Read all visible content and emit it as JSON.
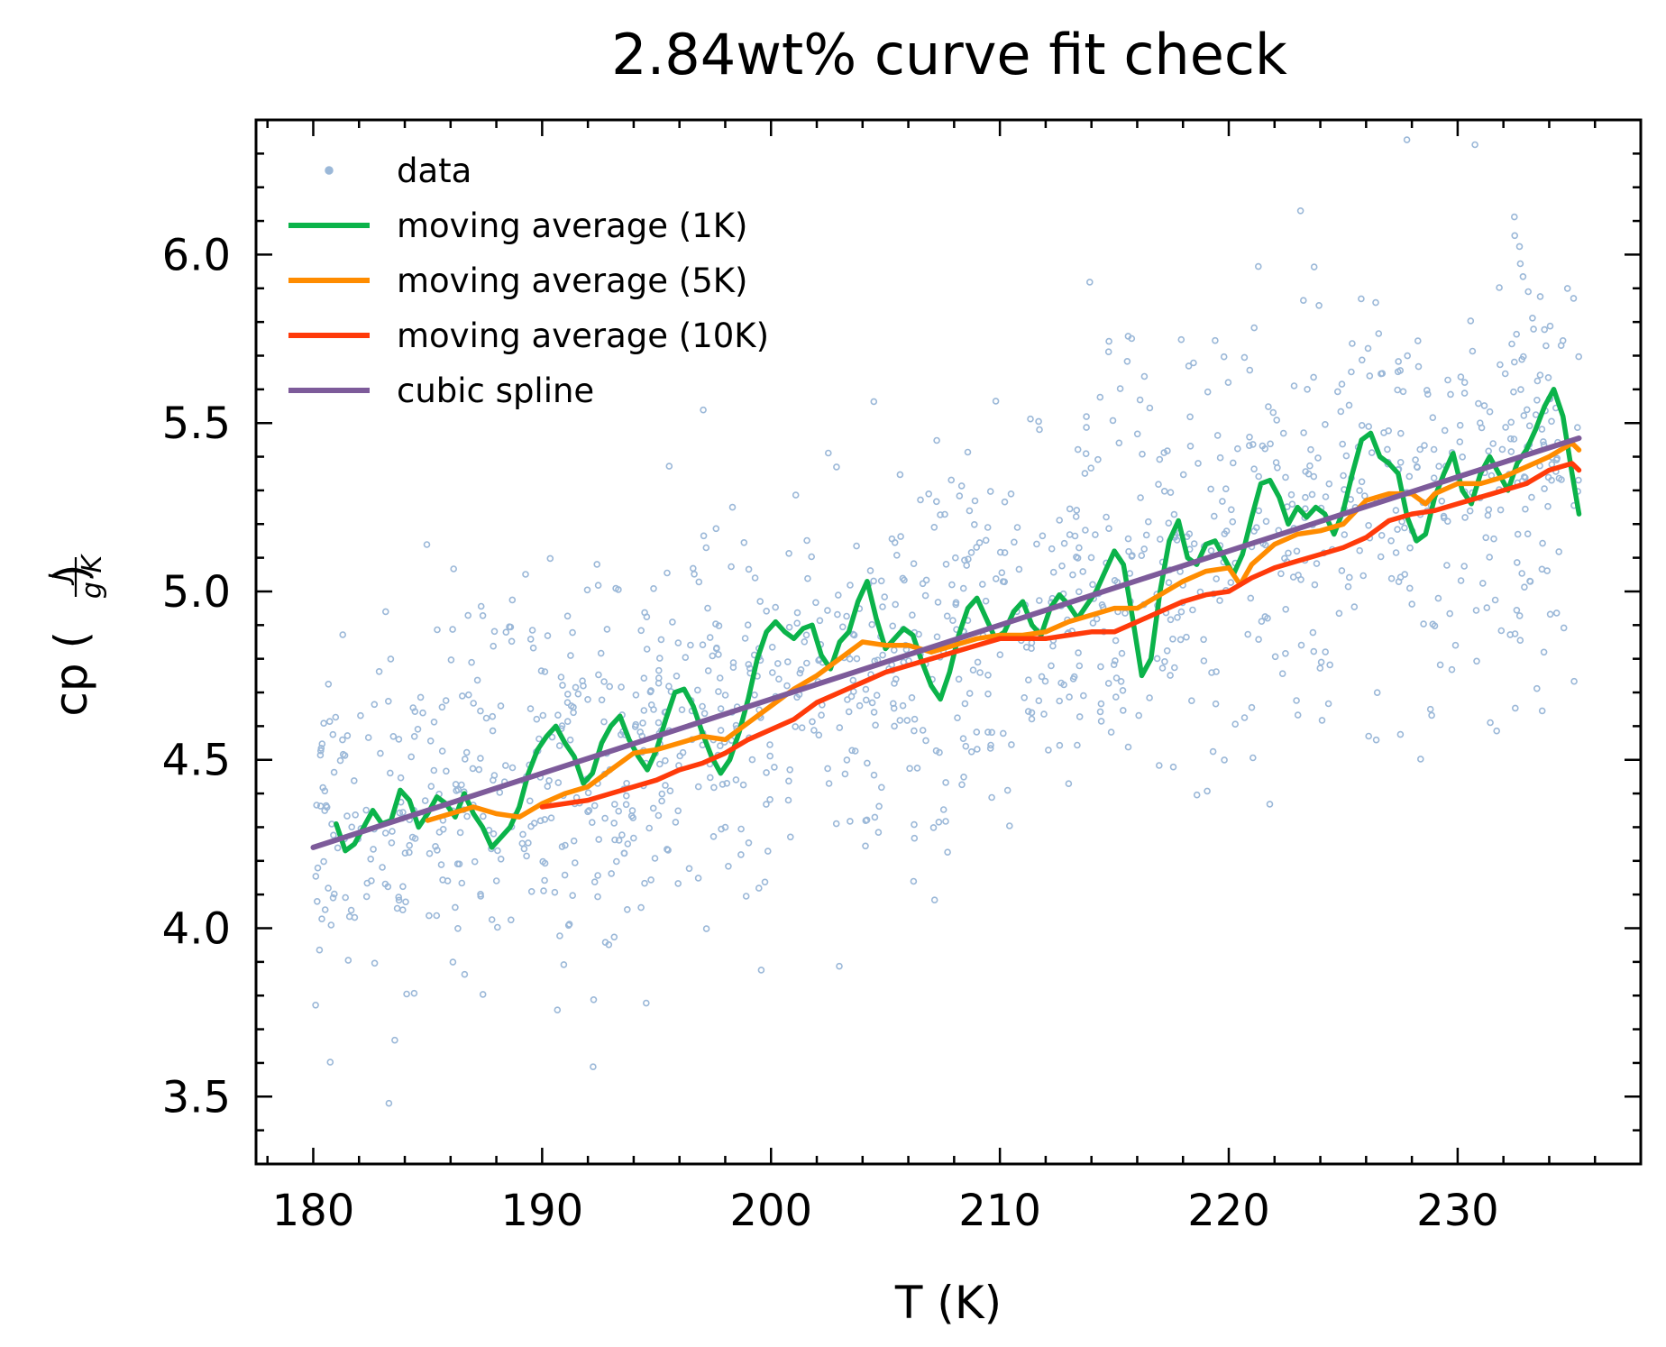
{
  "chart_data": {
    "type": "line",
    "title": "2.84wt% curve fit check",
    "xlabel": "T (K)",
    "ylabel_prefix": "cp (",
    "ylabel_numerator": "J",
    "ylabel_denominator": "g·K",
    "ylabel_suffix": ")",
    "xlim": [
      177.5,
      238
    ],
    "ylim": [
      3.3,
      6.4
    ],
    "x_ticks": [
      180,
      190,
      200,
      210,
      220,
      230
    ],
    "x_tick_labels": [
      "180",
      "190",
      "200",
      "210",
      "220",
      "230"
    ],
    "y_ticks": [
      3.5,
      4.0,
      4.5,
      5.0,
      5.5,
      6.0
    ],
    "y_tick_labels": [
      "3.5",
      "4.0",
      "4.5",
      "5.0",
      "5.5",
      "6.0"
    ],
    "grid": false,
    "legend_position": "top-left",
    "series": [
      {
        "name": "data",
        "kind": "scatter",
        "color": "#9bb8d8",
        "x_range": [
          180.1,
          235.3
        ],
        "trend": [
          [
            180,
            4.24
          ],
          [
            235.3,
            5.46
          ]
        ],
        "noise_sd": 0.3,
        "count": 1300
      },
      {
        "name": "moving average (1K)",
        "kind": "line",
        "color": "#0bb34a",
        "points": [
          [
            181.0,
            4.31
          ],
          [
            181.4,
            4.23
          ],
          [
            181.8,
            4.25
          ],
          [
            182.2,
            4.3
          ],
          [
            182.6,
            4.35
          ],
          [
            183.0,
            4.31
          ],
          [
            183.4,
            4.32
          ],
          [
            183.8,
            4.41
          ],
          [
            184.2,
            4.38
          ],
          [
            184.6,
            4.3
          ],
          [
            185.0,
            4.34
          ],
          [
            185.4,
            4.39
          ],
          [
            185.8,
            4.37
          ],
          [
            186.2,
            4.33
          ],
          [
            186.6,
            4.4
          ],
          [
            187.0,
            4.34
          ],
          [
            187.4,
            4.3
          ],
          [
            187.8,
            4.24
          ],
          [
            188.2,
            4.27
          ],
          [
            188.6,
            4.3
          ],
          [
            189.0,
            4.36
          ],
          [
            189.4,
            4.46
          ],
          [
            189.8,
            4.53
          ],
          [
            190.2,
            4.57
          ],
          [
            190.6,
            4.6
          ],
          [
            191.0,
            4.55
          ],
          [
            191.4,
            4.51
          ],
          [
            191.8,
            4.43
          ],
          [
            192.2,
            4.46
          ],
          [
            192.6,
            4.55
          ],
          [
            193.0,
            4.6
          ],
          [
            193.4,
            4.63
          ],
          [
            193.8,
            4.56
          ],
          [
            194.2,
            4.51
          ],
          [
            194.6,
            4.47
          ],
          [
            195.0,
            4.53
          ],
          [
            195.4,
            4.62
          ],
          [
            195.8,
            4.7
          ],
          [
            196.2,
            4.71
          ],
          [
            196.6,
            4.66
          ],
          [
            197.0,
            4.58
          ],
          [
            197.4,
            4.51
          ],
          [
            197.8,
            4.46
          ],
          [
            198.2,
            4.5
          ],
          [
            198.6,
            4.58
          ],
          [
            199.0,
            4.68
          ],
          [
            199.4,
            4.8
          ],
          [
            199.8,
            4.88
          ],
          [
            200.2,
            4.91
          ],
          [
            200.6,
            4.88
          ],
          [
            201.0,
            4.86
          ],
          [
            201.4,
            4.89
          ],
          [
            201.8,
            4.9
          ],
          [
            202.2,
            4.81
          ],
          [
            202.6,
            4.77
          ],
          [
            203.0,
            4.85
          ],
          [
            203.4,
            4.88
          ],
          [
            203.8,
            4.97
          ],
          [
            204.2,
            5.03
          ],
          [
            204.6,
            4.92
          ],
          [
            205.0,
            4.83
          ],
          [
            205.4,
            4.86
          ],
          [
            205.8,
            4.89
          ],
          [
            206.2,
            4.87
          ],
          [
            206.6,
            4.79
          ],
          [
            207.0,
            4.72
          ],
          [
            207.4,
            4.68
          ],
          [
            207.8,
            4.76
          ],
          [
            208.2,
            4.87
          ],
          [
            208.6,
            4.95
          ],
          [
            209.0,
            4.98
          ],
          [
            209.4,
            4.92
          ],
          [
            209.8,
            4.86
          ],
          [
            210.2,
            4.88
          ],
          [
            210.6,
            4.94
          ],
          [
            211.0,
            4.97
          ],
          [
            211.4,
            4.9
          ],
          [
            211.8,
            4.87
          ],
          [
            212.2,
            4.95
          ],
          [
            212.6,
            4.99
          ],
          [
            213.0,
            4.96
          ],
          [
            213.4,
            4.92
          ],
          [
            213.8,
            4.96
          ],
          [
            214.2,
            5.0
          ],
          [
            214.6,
            5.06
          ],
          [
            215.0,
            5.12
          ],
          [
            215.4,
            5.08
          ],
          [
            215.8,
            4.92
          ],
          [
            216.2,
            4.75
          ],
          [
            216.6,
            4.8
          ],
          [
            217.0,
            5.0
          ],
          [
            217.4,
            5.15
          ],
          [
            217.8,
            5.21
          ],
          [
            218.2,
            5.1
          ],
          [
            218.6,
            5.08
          ],
          [
            219.0,
            5.14
          ],
          [
            219.4,
            5.15
          ],
          [
            219.8,
            5.1
          ],
          [
            220.2,
            5.05
          ],
          [
            220.6,
            5.11
          ],
          [
            221.0,
            5.22
          ],
          [
            221.4,
            5.32
          ],
          [
            221.8,
            5.33
          ],
          [
            222.2,
            5.28
          ],
          [
            222.6,
            5.2
          ],
          [
            223.0,
            5.25
          ],
          [
            223.4,
            5.22
          ],
          [
            223.8,
            5.25
          ],
          [
            224.2,
            5.23
          ],
          [
            224.6,
            5.17
          ],
          [
            225.0,
            5.24
          ],
          [
            225.4,
            5.35
          ],
          [
            225.8,
            5.45
          ],
          [
            226.2,
            5.47
          ],
          [
            226.6,
            5.4
          ],
          [
            227.0,
            5.38
          ],
          [
            227.4,
            5.35
          ],
          [
            227.8,
            5.22
          ],
          [
            228.2,
            5.15
          ],
          [
            228.6,
            5.17
          ],
          [
            229.0,
            5.28
          ],
          [
            229.4,
            5.35
          ],
          [
            229.8,
            5.41
          ],
          [
            230.2,
            5.3
          ],
          [
            230.6,
            5.26
          ],
          [
            231.0,
            5.35
          ],
          [
            231.4,
            5.4
          ],
          [
            231.8,
            5.35
          ],
          [
            232.2,
            5.3
          ],
          [
            232.6,
            5.38
          ],
          [
            233.0,
            5.42
          ],
          [
            233.4,
            5.48
          ],
          [
            233.8,
            5.55
          ],
          [
            234.2,
            5.6
          ],
          [
            234.6,
            5.52
          ],
          [
            235.0,
            5.35
          ],
          [
            235.3,
            5.23
          ]
        ]
      },
      {
        "name": "moving average (5K)",
        "kind": "line",
        "color": "#ff8c00",
        "points": [
          [
            185.0,
            4.32
          ],
          [
            186.0,
            4.34
          ],
          [
            187.0,
            4.36
          ],
          [
            188.0,
            4.34
          ],
          [
            189.0,
            4.33
          ],
          [
            190.0,
            4.37
          ],
          [
            191.0,
            4.4
          ],
          [
            192.0,
            4.42
          ],
          [
            193.0,
            4.47
          ],
          [
            194.0,
            4.52
          ],
          [
            195.0,
            4.53
          ],
          [
            196.0,
            4.55
          ],
          [
            197.0,
            4.57
          ],
          [
            198.0,
            4.56
          ],
          [
            199.0,
            4.61
          ],
          [
            200.0,
            4.66
          ],
          [
            201.0,
            4.71
          ],
          [
            202.0,
            4.75
          ],
          [
            203.0,
            4.8
          ],
          [
            204.0,
            4.85
          ],
          [
            205.0,
            4.84
          ],
          [
            206.0,
            4.84
          ],
          [
            207.0,
            4.82
          ],
          [
            208.0,
            4.84
          ],
          [
            209.0,
            4.86
          ],
          [
            210.0,
            4.87
          ],
          [
            211.0,
            4.87
          ],
          [
            212.0,
            4.88
          ],
          [
            213.0,
            4.91
          ],
          [
            214.0,
            4.93
          ],
          [
            215.0,
            4.95
          ],
          [
            216.0,
            4.95
          ],
          [
            217.0,
            4.99
          ],
          [
            218.0,
            5.03
          ],
          [
            219.0,
            5.06
          ],
          [
            220.0,
            5.07
          ],
          [
            220.5,
            5.02
          ],
          [
            221.0,
            5.08
          ],
          [
            222.0,
            5.14
          ],
          [
            223.0,
            5.17
          ],
          [
            224.0,
            5.18
          ],
          [
            225.0,
            5.2
          ],
          [
            226.0,
            5.27
          ],
          [
            227.0,
            5.29
          ],
          [
            228.0,
            5.29
          ],
          [
            228.6,
            5.26
          ],
          [
            229.0,
            5.29
          ],
          [
            230.0,
            5.32
          ],
          [
            231.0,
            5.32
          ],
          [
            232.0,
            5.34
          ],
          [
            233.0,
            5.37
          ],
          [
            234.0,
            5.4
          ],
          [
            235.0,
            5.44
          ],
          [
            235.3,
            5.42
          ]
        ]
      },
      {
        "name": "moving average (10K)",
        "kind": "line",
        "color": "#ff3a0a",
        "points": [
          [
            190.0,
            4.36
          ],
          [
            191.0,
            4.37
          ],
          [
            192.0,
            4.38
          ],
          [
            193.0,
            4.4
          ],
          [
            194.0,
            4.42
          ],
          [
            195.0,
            4.44
          ],
          [
            196.0,
            4.47
          ],
          [
            197.0,
            4.49
          ],
          [
            198.0,
            4.52
          ],
          [
            199.0,
            4.56
          ],
          [
            200.0,
            4.59
          ],
          [
            201.0,
            4.62
          ],
          [
            202.0,
            4.67
          ],
          [
            203.0,
            4.7
          ],
          [
            204.0,
            4.73
          ],
          [
            205.0,
            4.76
          ],
          [
            206.0,
            4.78
          ],
          [
            207.0,
            4.8
          ],
          [
            208.0,
            4.82
          ],
          [
            209.0,
            4.84
          ],
          [
            210.0,
            4.86
          ],
          [
            211.0,
            4.86
          ],
          [
            212.0,
            4.86
          ],
          [
            213.0,
            4.87
          ],
          [
            214.0,
            4.88
          ],
          [
            215.0,
            4.88
          ],
          [
            216.0,
            4.91
          ],
          [
            217.0,
            4.94
          ],
          [
            218.0,
            4.97
          ],
          [
            219.0,
            4.99
          ],
          [
            220.0,
            5.0
          ],
          [
            221.0,
            5.04
          ],
          [
            222.0,
            5.07
          ],
          [
            223.0,
            5.09
          ],
          [
            224.0,
            5.11
          ],
          [
            225.0,
            5.13
          ],
          [
            226.0,
            5.16
          ],
          [
            227.0,
            5.21
          ],
          [
            228.0,
            5.23
          ],
          [
            229.0,
            5.24
          ],
          [
            230.0,
            5.26
          ],
          [
            231.0,
            5.28
          ],
          [
            232.0,
            5.3
          ],
          [
            233.0,
            5.32
          ],
          [
            234.0,
            5.36
          ],
          [
            235.0,
            5.38
          ],
          [
            235.3,
            5.36
          ]
        ]
      },
      {
        "name": "cubic spline",
        "kind": "line",
        "color": "#7d5b9a",
        "points": [
          [
            180.0,
            4.24
          ],
          [
            190.0,
            4.46
          ],
          [
            200.0,
            4.68
          ],
          [
            210.0,
            4.9
          ],
          [
            220.0,
            5.12
          ],
          [
            230.0,
            5.34
          ],
          [
            235.3,
            5.455
          ]
        ]
      }
    ]
  }
}
